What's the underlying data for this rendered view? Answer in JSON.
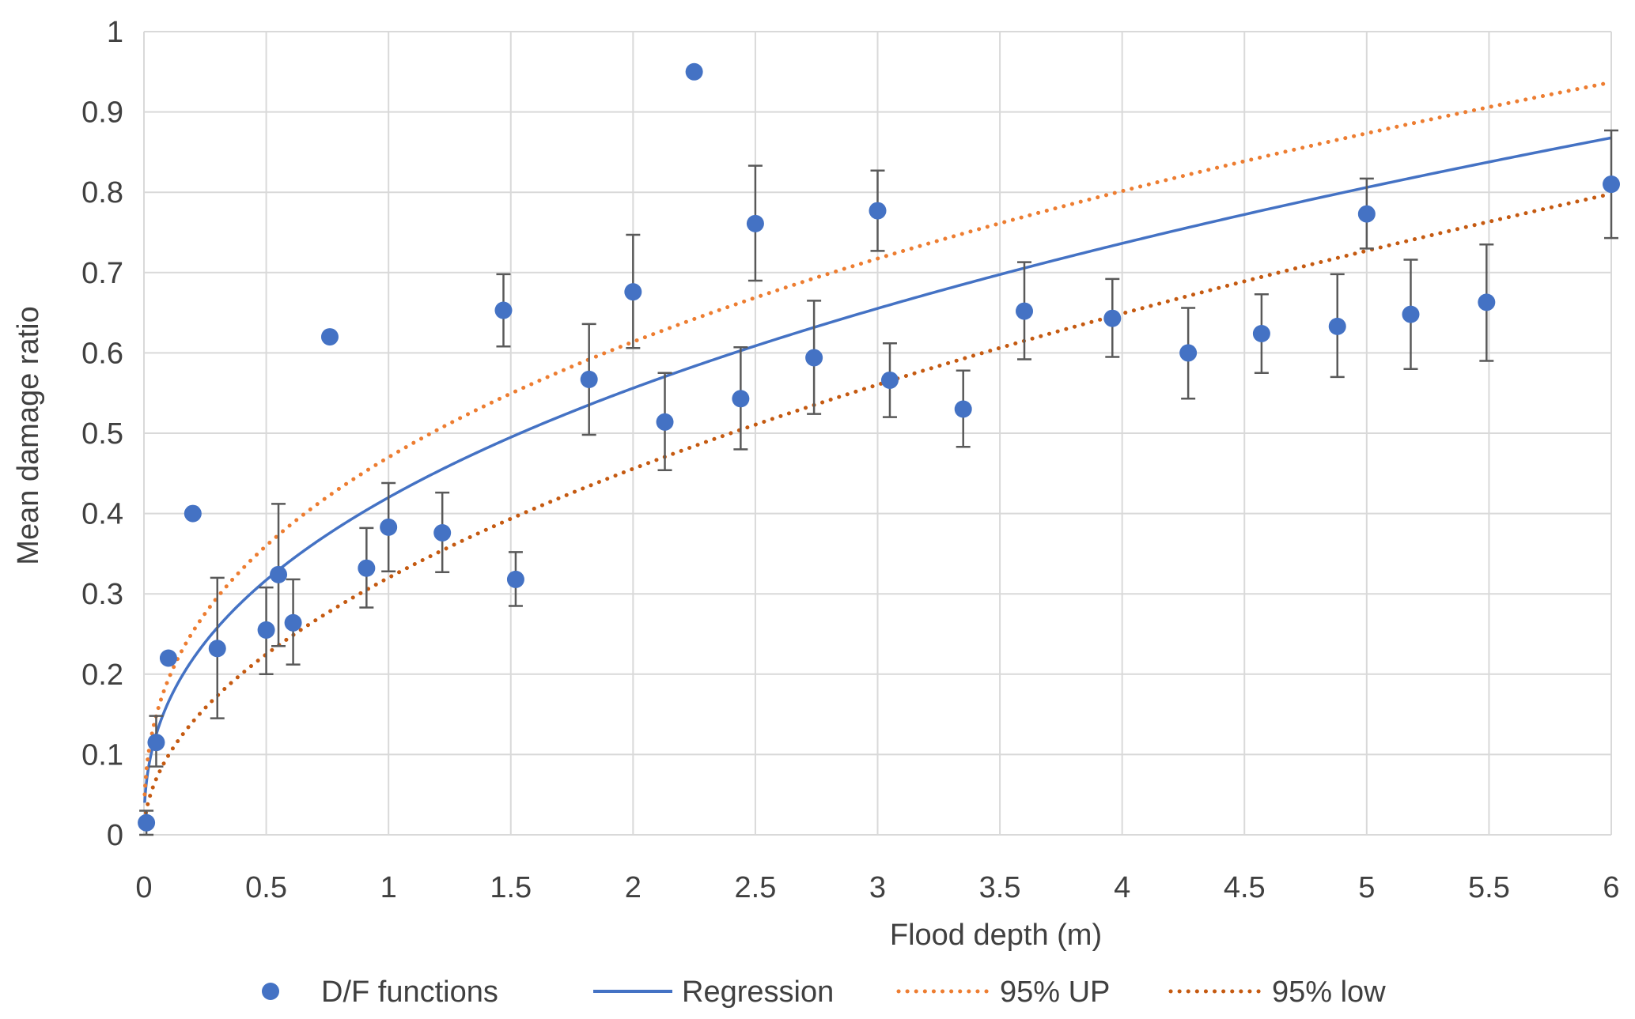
{
  "chart_data": {
    "type": "scatter",
    "title": "",
    "xlabel": "Flood depth (m)",
    "ylabel": "Mean damage ratio",
    "xlim": [
      0,
      6
    ],
    "ylim": [
      0,
      1
    ],
    "x_ticks": [
      "0",
      "0.5",
      "1",
      "1.5",
      "2",
      "2.5",
      "3",
      "3.5",
      "4",
      "4.5",
      "5",
      "5.5",
      "6"
    ],
    "y_ticks": [
      "0",
      "0.1",
      "0.2",
      "0.3",
      "0.4",
      "0.5",
      "0.6",
      "0.7",
      "0.8",
      "0.9",
      "1"
    ],
    "grid": true,
    "legend_position": "bottom",
    "colors": {
      "points": "#4472C4",
      "regression": "#4472C4",
      "upper": "#ED7D31",
      "lower": "#C55A11",
      "error_bars": "#595959",
      "grid": "#D9D9D9"
    },
    "series": [
      {
        "name": "D/F functions",
        "kind": "points",
        "points": [
          {
            "x": 0.01,
            "y": 0.015,
            "err_low": 0.0,
            "err_high": 0.03
          },
          {
            "x": 0.05,
            "y": 0.115,
            "err_low": 0.085,
            "err_high": 0.148
          },
          {
            "x": 0.1,
            "y": 0.22
          },
          {
            "x": 0.2,
            "y": 0.4
          },
          {
            "x": 0.3,
            "y": 0.232,
            "err_low": 0.145,
            "err_high": 0.32
          },
          {
            "x": 0.5,
            "y": 0.255,
            "err_low": 0.2,
            "err_high": 0.308
          },
          {
            "x": 0.55,
            "y": 0.324,
            "err_low": 0.235,
            "err_high": 0.412
          },
          {
            "x": 0.61,
            "y": 0.264,
            "err_low": 0.212,
            "err_high": 0.318
          },
          {
            "x": 0.76,
            "y": 0.62
          },
          {
            "x": 0.91,
            "y": 0.332,
            "err_low": 0.283,
            "err_high": 0.382
          },
          {
            "x": 1.0,
            "y": 0.383,
            "err_low": 0.328,
            "err_high": 0.438
          },
          {
            "x": 1.22,
            "y": 0.376,
            "err_low": 0.327,
            "err_high": 0.426
          },
          {
            "x": 1.47,
            "y": 0.653,
            "err_low": 0.608,
            "err_high": 0.698
          },
          {
            "x": 1.52,
            "y": 0.318,
            "err_low": 0.285,
            "err_high": 0.352
          },
          {
            "x": 1.82,
            "y": 0.567,
            "err_low": 0.498,
            "err_high": 0.636
          },
          {
            "x": 2.0,
            "y": 0.676,
            "err_low": 0.606,
            "err_high": 0.747
          },
          {
            "x": 2.13,
            "y": 0.514,
            "err_low": 0.454,
            "err_high": 0.575
          },
          {
            "x": 2.25,
            "y": 0.95
          },
          {
            "x": 2.44,
            "y": 0.543,
            "err_low": 0.48,
            "err_high": 0.607
          },
          {
            "x": 2.5,
            "y": 0.761,
            "err_low": 0.69,
            "err_high": 0.833
          },
          {
            "x": 2.74,
            "y": 0.594,
            "err_low": 0.524,
            "err_high": 0.665
          },
          {
            "x": 3.0,
            "y": 0.777,
            "err_low": 0.727,
            "err_high": 0.827
          },
          {
            "x": 3.05,
            "y": 0.566,
            "err_low": 0.52,
            "err_high": 0.612
          },
          {
            "x": 3.35,
            "y": 0.53,
            "err_low": 0.483,
            "err_high": 0.578
          },
          {
            "x": 3.6,
            "y": 0.652,
            "err_low": 0.592,
            "err_high": 0.713
          },
          {
            "x": 3.96,
            "y": 0.643,
            "err_low": 0.595,
            "err_high": 0.692
          },
          {
            "x": 4.27,
            "y": 0.6,
            "err_low": 0.543,
            "err_high": 0.656
          },
          {
            "x": 4.57,
            "y": 0.624,
            "err_low": 0.575,
            "err_high": 0.673
          },
          {
            "x": 4.88,
            "y": 0.633,
            "err_low": 0.57,
            "err_high": 0.698
          },
          {
            "x": 5.0,
            "y": 0.773,
            "err_low": 0.73,
            "err_high": 0.817
          },
          {
            "x": 5.18,
            "y": 0.648,
            "err_low": 0.58,
            "err_high": 0.716
          },
          {
            "x": 5.49,
            "y": 0.663,
            "err_low": 0.59,
            "err_high": 0.735
          },
          {
            "x": 6.0,
            "y": 0.81,
            "err_low": 0.743,
            "err_high": 0.877
          }
        ]
      },
      {
        "name": "Regression",
        "kind": "line",
        "style": "solid",
        "equation": "y = 0.42 * x^0.405"
      },
      {
        "name": "95% UP",
        "kind": "line",
        "style": "dotted",
        "equation": "y = 0.47 * x^0.385"
      },
      {
        "name": "95% low",
        "kind": "line",
        "style": "dotted",
        "equation": "y = 0.32 * x^0.51"
      }
    ]
  }
}
